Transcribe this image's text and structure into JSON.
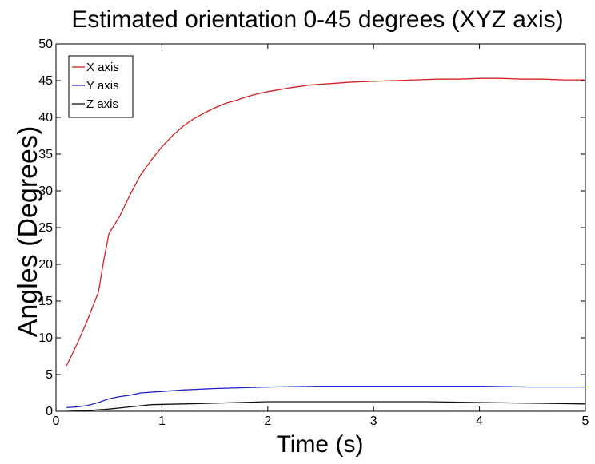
{
  "chart_data": {
    "type": "line",
    "title": "Estimated orientation 0-45 degrees (XYZ axis)",
    "xlabel": "Time (s)",
    "ylabel": "Angles (Degrees)",
    "xlim": [
      0,
      5
    ],
    "ylim": [
      0,
      50
    ],
    "xticks": [
      0,
      1,
      2,
      3,
      4,
      5
    ],
    "yticks": [
      0,
      5,
      10,
      15,
      20,
      25,
      30,
      35,
      40,
      45,
      50
    ],
    "grid": false,
    "legend_position": "top-left",
    "series": [
      {
        "name": "X axis",
        "color": "#d42020",
        "x": [
          0.1,
          0.2,
          0.3,
          0.4,
          0.45,
          0.5,
          0.6,
          0.7,
          0.8,
          0.9,
          1.0,
          1.1,
          1.2,
          1.3,
          1.4,
          1.5,
          1.6,
          1.7,
          1.8,
          1.9,
          2.0,
          2.2,
          2.4,
          2.6,
          2.8,
          3.0,
          3.2,
          3.4,
          3.6,
          3.8,
          4.0,
          4.2,
          4.4,
          4.6,
          4.8,
          5.0
        ],
        "y": [
          6.2,
          9.2,
          12.5,
          16.2,
          20.5,
          24.2,
          26.5,
          29.5,
          32.2,
          34.2,
          36.0,
          37.5,
          38.8,
          39.8,
          40.6,
          41.3,
          41.9,
          42.3,
          42.8,
          43.2,
          43.5,
          44.0,
          44.4,
          44.6,
          44.8,
          44.9,
          45.0,
          45.1,
          45.2,
          45.2,
          45.3,
          45.3,
          45.2,
          45.2,
          45.1,
          45.1
        ]
      },
      {
        "name": "Y axis",
        "color": "#2020cc",
        "x": [
          0.1,
          0.2,
          0.3,
          0.4,
          0.5,
          0.6,
          0.7,
          0.8,
          1.0,
          1.2,
          1.5,
          2.0,
          2.5,
          3.0,
          3.5,
          4.0,
          4.5,
          5.0
        ],
        "y": [
          0.5,
          0.6,
          0.8,
          1.2,
          1.7,
          2.0,
          2.2,
          2.5,
          2.7,
          2.9,
          3.1,
          3.3,
          3.4,
          3.4,
          3.4,
          3.4,
          3.3,
          3.3
        ]
      },
      {
        "name": "Z axis",
        "color": "#111111",
        "x": [
          0.1,
          0.3,
          0.5,
          0.7,
          0.9,
          1.2,
          1.5,
          2.0,
          2.5,
          3.0,
          3.5,
          4.0,
          4.5,
          5.0
        ],
        "y": [
          0.0,
          0.1,
          0.3,
          0.6,
          0.9,
          1.0,
          1.1,
          1.3,
          1.3,
          1.3,
          1.3,
          1.2,
          1.1,
          1.0
        ]
      }
    ]
  }
}
